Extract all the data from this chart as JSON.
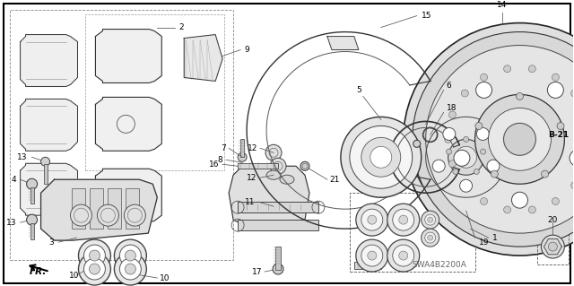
{
  "bg_color": "#ffffff",
  "diagram_code": "SWA4B2200A",
  "fig_width": 6.4,
  "fig_height": 3.19,
  "dpi": 100,
  "border_color": "#000000",
  "line_color": "#333333",
  "text_color": "#000000",
  "label_fs": 6.5,
  "code_fs": 6.5
}
